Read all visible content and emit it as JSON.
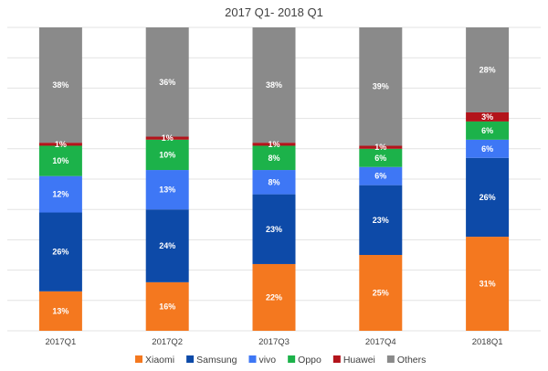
{
  "chart_data": {
    "type": "bar",
    "stacked": true,
    "title": "2017 Q1- 2018 Q1",
    "categories": [
      "2017Q1",
      "2017Q2",
      "2017Q3",
      "2017Q4",
      "2018Q1"
    ],
    "series": [
      {
        "name": "Xiaomi",
        "color": "#f4781f",
        "values": [
          13,
          16,
          22,
          25,
          31
        ]
      },
      {
        "name": "Samsung",
        "color": "#0d4aa8",
        "values": [
          26,
          24,
          23,
          23,
          26
        ]
      },
      {
        "name": "vivo",
        "color": "#3e77f5",
        "values": [
          12,
          13,
          8,
          6,
          6
        ]
      },
      {
        "name": "Oppo",
        "color": "#1cb24a",
        "values": [
          10,
          10,
          8,
          6,
          6
        ]
      },
      {
        "name": "Huawei",
        "color": "#b3141b",
        "values": [
          1,
          1,
          1,
          1,
          3
        ]
      },
      {
        "name": "Others",
        "color": "#8a8a8a",
        "values": [
          38,
          36,
          38,
          39,
          28
        ]
      }
    ],
    "ylim": [
      0,
      100
    ],
    "grid": true,
    "legend": "bottom",
    "value_suffix": "%"
  }
}
